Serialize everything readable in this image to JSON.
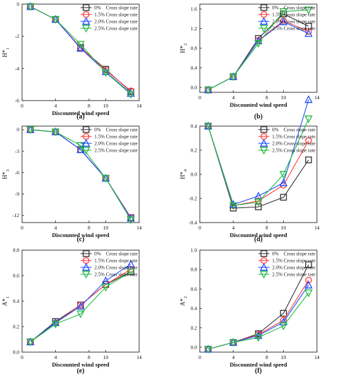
{
  "figure": {
    "series_colors": [
      "#333333",
      "#ff3b3b",
      "#1f4fff",
      "#22bb44"
    ]
  },
  "chart_data": [
    {
      "type": "line",
      "panel_label": "(a)",
      "ylabel_main": "H*",
      "ylabel_sub": "1",
      "xlabel": "Discounted wind speed",
      "xlim": [
        0,
        14
      ],
      "ylim": [
        -6,
        0
      ],
      "xticks": [
        0,
        4,
        8,
        10,
        14
      ],
      "yticks": [
        -6,
        -4,
        -2,
        0
      ],
      "x": [
        1,
        4,
        7,
        10,
        13
      ],
      "series": [
        {
          "name": "0%    Cross slope rate",
          "marker": "square",
          "values": [
            -0.15,
            -0.95,
            -2.7,
            -4.05,
            -5.45
          ]
        },
        {
          "name": "1.5% Cross slope rate",
          "marker": "circle",
          "values": [
            -0.15,
            -0.95,
            -2.7,
            -4.1,
            -5.4
          ]
        },
        {
          "name": "2.0% Cross slope rate",
          "marker": "triangle",
          "values": [
            -0.15,
            -0.95,
            -2.75,
            -4.2,
            -5.55
          ]
        },
        {
          "name": "2.5% Cross slope rate",
          "marker": "tri-down",
          "values": [
            -0.15,
            -0.95,
            -2.5,
            -4.25,
            -5.6
          ]
        }
      ]
    },
    {
      "type": "line",
      "panel_label": "(b)",
      "ylabel_main": "H*",
      "ylabel_sub": "2",
      "xlabel": "Discounted wind speed",
      "xlim": [
        0,
        14
      ],
      "ylim": [
        -0.1,
        1.7
      ],
      "xticks": [
        0,
        4,
        8,
        10,
        14
      ],
      "yticks": [
        0.0,
        0.4,
        0.8,
        1.2,
        1.6
      ],
      "x": [
        1,
        4,
        7,
        10,
        13
      ],
      "series": [
        {
          "name": "0%    Cross slope rate",
          "marker": "square",
          "values": [
            -0.05,
            0.22,
            1.0,
            1.5,
            1.25
          ]
        },
        {
          "name": "1.5% Cross slope rate",
          "marker": "circle",
          "values": [
            -0.05,
            0.22,
            0.96,
            1.36,
            1.14
          ]
        },
        {
          "name": "2.0% Cross slope rate",
          "marker": "triangle",
          "values": [
            -0.05,
            0.22,
            0.95,
            1.34,
            1.1
          ]
        },
        {
          "name": "2.5% Cross slope rate",
          "marker": "tri-down",
          "values": [
            -0.05,
            0.22,
            0.9,
            1.55,
            1.58
          ]
        }
      ]
    },
    {
      "type": "line",
      "panel_label": "(c)",
      "ylabel_main": "H*",
      "ylabel_sub": "3",
      "xlabel": "Discounted wind speed",
      "xlim": [
        0,
        14
      ],
      "ylim": [
        -13,
        0.5
      ],
      "xticks": [
        0,
        4,
        8,
        10,
        14
      ],
      "yticks": [
        -12,
        -9,
        -6,
        -3,
        0
      ],
      "x": [
        1,
        4,
        7,
        10,
        13
      ],
      "series": [
        {
          "name": "0%    Cross slope rate",
          "marker": "square",
          "values": [
            0,
            -0.3,
            -2.8,
            -6.8,
            -12.3
          ]
        },
        {
          "name": "1.5% Cross slope rate",
          "marker": "circle",
          "values": [
            0,
            -0.3,
            -2.8,
            -6.8,
            -12.3
          ]
        },
        {
          "name": "2.0% Cross slope rate",
          "marker": "triangle",
          "values": [
            0,
            -0.3,
            -2.8,
            -6.8,
            -12.4
          ]
        },
        {
          "name": "2.5% Cross slope rate",
          "marker": "tri-down",
          "values": [
            0,
            -0.3,
            -2.2,
            -6.8,
            -12.6
          ]
        }
      ]
    },
    {
      "type": "line",
      "panel_label": "(d)",
      "ylabel_main": "H*",
      "ylabel_sub": "4",
      "xlabel": "Discounted wind speed",
      "xlim": [
        0,
        14
      ],
      "ylim": [
        -0.4,
        0.4
      ],
      "xticks": [
        0,
        4,
        8,
        10,
        14
      ],
      "yticks": [
        -0.4,
        -0.2,
        0.0,
        0.2,
        0.4
      ],
      "x": [
        1,
        4,
        7,
        10,
        13
      ],
      "series": [
        {
          "name": "0%    Cross slope rate",
          "marker": "square",
          "values": [
            0.4,
            -0.28,
            -0.27,
            -0.19,
            0.12
          ]
        },
        {
          "name": "1.5% Cross slope rate",
          "marker": "circle",
          "values": [
            0.4,
            -0.26,
            -0.22,
            -0.09,
            0.28
          ]
        },
        {
          "name": "2.0% Cross slope rate",
          "marker": "triangle",
          "values": [
            0.4,
            -0.25,
            -0.18,
            -0.07,
            0.62
          ]
        },
        {
          "name": "2.5% Cross slope rate",
          "marker": "tri-down",
          "values": [
            0.4,
            -0.26,
            -0.23,
            0.0,
            0.46
          ]
        }
      ]
    },
    {
      "type": "line",
      "panel_label": "(e)",
      "ylabel_main": "A*",
      "ylabel_sub": "1",
      "xlabel": "Discounted wind speed",
      "xlim": [
        0,
        14
      ],
      "ylim": [
        0.0,
        0.8
      ],
      "xticks": [
        0,
        4,
        8,
        10,
        14
      ],
      "yticks": [
        0.0,
        0.2,
        0.4,
        0.6,
        0.8
      ],
      "x": [
        1,
        4,
        7,
        10,
        13
      ],
      "series": [
        {
          "name": "0%    Cross slope rate",
          "marker": "square",
          "values": [
            0.08,
            0.24,
            0.37,
            0.53,
            0.63
          ]
        },
        {
          "name": "1.5% Cross slope rate",
          "marker": "circle",
          "values": [
            0.08,
            0.23,
            0.37,
            0.53,
            0.65
          ]
        },
        {
          "name": "2.0% Cross slope rate",
          "marker": "triangle",
          "values": [
            0.08,
            0.23,
            0.36,
            0.56,
            0.69
          ]
        },
        {
          "name": "2.5% Cross slope rate",
          "marker": "tri-down",
          "values": [
            0.08,
            0.22,
            0.3,
            0.51,
            0.63
          ]
        }
      ]
    },
    {
      "type": "line",
      "panel_label": "(f)",
      "ylabel_main": "A*",
      "ylabel_sub": "2",
      "xlabel": "Discounted wind speed",
      "xlim": [
        0,
        14
      ],
      "ylim": [
        -0.05,
        1.0
      ],
      "xticks": [
        0,
        4,
        8,
        10,
        14
      ],
      "yticks": [
        0.0,
        0.2,
        0.4,
        0.6,
        0.8,
        1.0
      ],
      "x": [
        1,
        4,
        7,
        10,
        13
      ],
      "series": [
        {
          "name": "0%    Cross slope rate",
          "marker": "square",
          "values": [
            -0.02,
            0.05,
            0.14,
            0.35,
            0.85
          ]
        },
        {
          "name": "1.5% Cross slope rate",
          "marker": "circle",
          "values": [
            -0.02,
            0.05,
            0.13,
            0.28,
            0.69
          ]
        },
        {
          "name": "2.0% Cross slope rate",
          "marker": "triangle",
          "values": [
            -0.02,
            0.05,
            0.12,
            0.26,
            0.64
          ]
        },
        {
          "name": "2.5% Cross slope rate",
          "marker": "tri-down",
          "values": [
            -0.02,
            0.05,
            0.1,
            0.22,
            0.56
          ]
        }
      ]
    }
  ]
}
